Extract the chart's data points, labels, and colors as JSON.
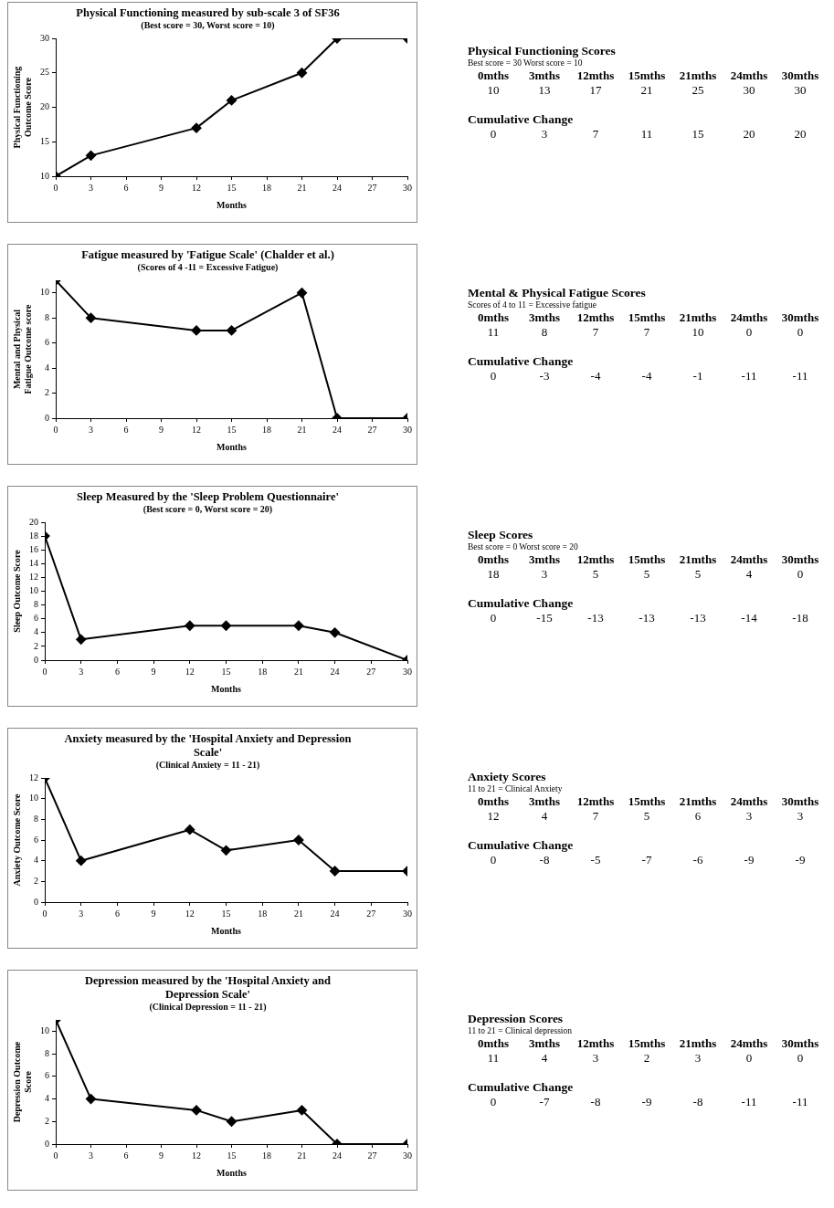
{
  "chart_data": [
    {
      "type": "line",
      "title": "Physical Functioning measured by sub-scale 3 of SF36",
      "subtitle": "(Best score = 30, Worst score = 10)",
      "xlabel": "Months",
      "ylabel": "Physical Functioning Outcome Score",
      "x": [
        0,
        3,
        12,
        15,
        21,
        24,
        30
      ],
      "series": [
        {
          "color": "#000000",
          "values": [
            10,
            13,
            17,
            21,
            25,
            30,
            30
          ]
        }
      ],
      "xlim": [
        0,
        30
      ],
      "xticks": [
        0,
        3,
        6,
        9,
        12,
        15,
        18,
        21,
        24,
        27,
        30
      ],
      "ylim": [
        10,
        30
      ],
      "yticks": [
        10,
        15,
        20,
        25,
        30
      ],
      "grid": false,
      "legend": false,
      "marker": "diamond",
      "line_style": "solid",
      "annotations": [
        "Physical Functioning Scores",
        "Best score = 30   Worst score = 10",
        "0mths",
        "3mths",
        "12mths",
        "15mths",
        "21mths",
        "24mths",
        "30mths",
        "10",
        "13",
        "17",
        "21",
        "25",
        "30",
        "30",
        "Cumulative Change",
        "0",
        "3",
        "7",
        "11",
        "15",
        "20",
        "20"
      ]
    },
    {
      "type": "line",
      "title": "Fatigue measured by 'Fatigue Scale' (Chalder et al.)",
      "subtitle": "(Scores of 4 -11 = Excessive Fatigue)",
      "xlabel": "Months",
      "ylabel": "Mental and Physical Fatigue Outcome score",
      "x": [
        0,
        3,
        12,
        15,
        21,
        24,
        30
      ],
      "series": [
        {
          "color": "#000000",
          "values": [
            11,
            8,
            7,
            7,
            10,
            0,
            0
          ]
        }
      ],
      "xlim": [
        0,
        30
      ],
      "xticks": [
        0,
        3,
        6,
        9,
        12,
        15,
        18,
        21,
        24,
        27,
        30
      ],
      "ylim": [
        0,
        11
      ],
      "yticks": [
        0,
        2,
        4,
        6,
        8,
        10
      ],
      "grid": false,
      "legend": false,
      "marker": "diamond",
      "line_style": "solid",
      "annotations": [
        "Mental & Physical Fatigue Scores",
        "Scores of 4 to 11 = Excessive fatigue",
        "0mths",
        "3mths",
        "12mths",
        "15mths",
        "21mths",
        "24mths",
        "30mths",
        "11",
        "8",
        "7",
        "7",
        "10",
        "0",
        "0",
        "Cumulative Change",
        "0",
        "-3",
        "-4",
        "-4",
        "-1",
        "-11",
        "-11"
      ]
    },
    {
      "type": "line",
      "title": "Sleep Measured by the 'Sleep Problem Questionnaire'",
      "subtitle": "(Best score = 0, Worst score = 20)",
      "xlabel": "Months",
      "ylabel": "Sleep Outcome Score",
      "x": [
        0,
        3,
        12,
        15,
        21,
        24,
        30
      ],
      "series": [
        {
          "color": "#000000",
          "values": [
            18,
            3,
            5,
            5,
            5,
            4,
            0
          ]
        }
      ],
      "xlim": [
        0,
        30
      ],
      "xticks": [
        0,
        3,
        6,
        9,
        12,
        15,
        18,
        21,
        24,
        27,
        30
      ],
      "ylim": [
        0,
        20
      ],
      "yticks": [
        0,
        2,
        4,
        6,
        8,
        10,
        12,
        14,
        16,
        18,
        20
      ],
      "grid": false,
      "legend": false,
      "marker": "diamond",
      "line_style": "solid",
      "annotations": [
        "Sleep Scores",
        "Best score = 0   Worst score = 20",
        "0mths",
        "3mths",
        "12mths",
        "15mths",
        "21mths",
        "24mths",
        "30mths",
        "18",
        "3",
        "5",
        "5",
        "5",
        "4",
        "0",
        "Cumulative Change",
        "0",
        "-15",
        "-13",
        "-13",
        "-13",
        "-14",
        "-18"
      ]
    },
    {
      "type": "line",
      "title": "Anxiety measured by the 'Hospital Anxiety and Depression Scale'",
      "subtitle": "(Clinical Anxiety = 11 - 21)",
      "xlabel": "Months",
      "ylabel": "Anxiety Outcome Score",
      "x": [
        0,
        3,
        12,
        15,
        21,
        24,
        30
      ],
      "series": [
        {
          "color": "#000000",
          "values": [
            12,
            4,
            7,
            5,
            6,
            3,
            3
          ]
        }
      ],
      "xlim": [
        0,
        30
      ],
      "xticks": [
        0,
        3,
        6,
        9,
        12,
        15,
        18,
        21,
        24,
        27,
        30
      ],
      "ylim": [
        0,
        12
      ],
      "yticks": [
        0,
        2,
        4,
        6,
        8,
        10,
        12
      ],
      "grid": false,
      "legend": false,
      "marker": "diamond",
      "line_style": "solid",
      "annotations": [
        "Anxiety Scores",
        "11 to 21 = Clinical Anxiety",
        "0mths",
        "3mths",
        "12mths",
        "15mths",
        "21mths",
        "24mths",
        "30mths",
        "12",
        "4",
        "7",
        "5",
        "6",
        "3",
        "3",
        "Cumulative Change",
        "0",
        "-8",
        "-5",
        "-7",
        "-6",
        "-9",
        "-9"
      ]
    },
    {
      "type": "line",
      "title": "Depression measured by the 'Hospital Anxiety and Depression Scale'",
      "subtitle": "(Clinical Depression = 11 - 21)",
      "xlabel": "Months",
      "ylabel": "Depression Outcome Score",
      "x": [
        0,
        3,
        12,
        15,
        21,
        24,
        30
      ],
      "series": [
        {
          "color": "#000000",
          "values": [
            11,
            4,
            3,
            2,
            3,
            0,
            0
          ]
        }
      ],
      "xlim": [
        0,
        30
      ],
      "xticks": [
        0,
        3,
        6,
        9,
        12,
        15,
        18,
        21,
        24,
        27,
        30
      ],
      "ylim": [
        0,
        11
      ],
      "yticks": [
        0,
        2,
        4,
        6,
        8,
        10
      ],
      "grid": false,
      "legend": false,
      "marker": "diamond",
      "line_style": "solid",
      "annotations": [
        "Depression Scores",
        "11 to 21 = Clinical depression",
        "0mths",
        "3mths",
        "12mths",
        "15mths",
        "21mths",
        "24mths",
        "30mths",
        "11",
        "4",
        "3",
        "2",
        "3",
        "0",
        "0",
        "Cumulative Change",
        "0",
        "-7",
        "-8",
        "-9",
        "-8",
        "-11",
        "-11"
      ]
    }
  ]
}
